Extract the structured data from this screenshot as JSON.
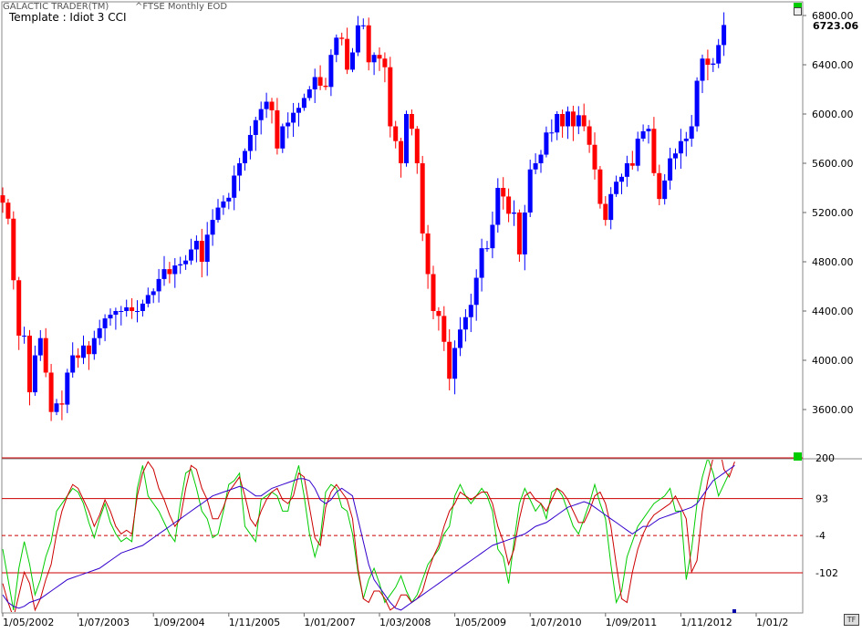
{
  "header": {
    "app_title": "GALACTIC TRADER(TM)",
    "subtitle": "^FTSE Monthly EOD",
    "template": "Template : Idiot 3 CCI",
    "last_price": "6723.06"
  },
  "buttons": {
    "timeframe": "TF"
  },
  "colors": {
    "up": "#0000ff",
    "down": "#ff0000",
    "cci_fast": "#00cc00",
    "cci_mid": "#cc0000",
    "cci_slow": "#3300cc",
    "marker": "#00cc00",
    "reference": "#cc0000"
  },
  "chart_data": [
    {
      "type": "candlestick",
      "title": "^FTSE Monthly EOD",
      "y_tick_labels": [
        "6800.00",
        "6400.00",
        "6000.00",
        "5600.00",
        "5200.00",
        "4800.00",
        "4400.00",
        "4000.00",
        "3600.00"
      ],
      "ylim": [
        3170,
        6900
      ],
      "x_tick_labels": [
        "1/05/2002",
        "1/07/2003",
        "1/09/2004",
        "1/11/2005",
        "1/01/2007",
        "1/03/2008",
        "1/05/2009",
        "1/07/2010",
        "1/09/2011",
        "1/11/2012",
        "1/01/2"
      ],
      "x_tick_index": [
        0,
        14,
        28,
        42,
        56,
        70,
        84,
        98,
        112,
        126,
        140
      ],
      "grid": false,
      "closes": [
        5280,
        5150,
        4650,
        4200,
        4200,
        3740,
        4040,
        4180,
        3900,
        3580,
        3650,
        3640,
        3900,
        4040,
        4020,
        4120,
        4050,
        4180,
        4260,
        4340,
        4370,
        4400,
        4400,
        4430,
        4400,
        4400,
        4460,
        4530,
        4560,
        4660,
        4740,
        4700,
        4770,
        4780,
        4810,
        4900,
        4970,
        4800,
        5020,
        5140,
        5240,
        5290,
        5320,
        5500,
        5600,
        5700,
        5830,
        5950,
        6040,
        6100,
        6030,
        5720,
        5900,
        5930,
        6010,
        6050,
        6130,
        6200,
        6300,
        6230,
        6220,
        6480,
        6620,
        6610,
        6360,
        6500,
        6720,
        6720,
        6420,
        6480,
        6450,
        6380,
        5900,
        5780,
        5600,
        6000,
        5880,
        5600,
        5030,
        4700,
        4400,
        4360,
        4150,
        3850,
        4100,
        4250,
        4350,
        4450,
        4670,
        4910,
        4910,
        5100,
        5400,
        5330,
        5190,
        5200,
        4860,
        5200,
        5550,
        5600,
        5670,
        5850,
        5850,
        6000,
        5900,
        6020,
        5900,
        5990,
        5900,
        5750,
        5550,
        5270,
        5140,
        5350,
        5450,
        5490,
        5600,
        5580,
        5800,
        5860,
        5880,
        5520,
        5310,
        5460,
        5640,
        5680,
        5780,
        5800,
        5900,
        6270,
        6450,
        6400,
        6410,
        6560,
        6723
      ]
    },
    {
      "type": "line",
      "title": "Idiot 3 CCI",
      "y_tick_labels": [
        "200",
        "93",
        "-4",
        "-102"
      ],
      "reference_lines": {
        "solid": [
          200,
          93,
          -102
        ],
        "dashed": [
          -4
        ]
      },
      "ylim": [
        -185,
        260
      ],
      "series": [
        {
          "color": "#00cc00",
          "values": [
            -40,
            -120,
            -200,
            -90,
            -20,
            -80,
            -160,
            -120,
            -60,
            -20,
            60,
            80,
            100,
            120,
            110,
            80,
            30,
            -10,
            40,
            80,
            30,
            0,
            -20,
            -10,
            -20,
            120,
            180,
            100,
            80,
            60,
            30,
            0,
            -20,
            80,
            160,
            170,
            120,
            60,
            40,
            -10,
            0,
            60,
            130,
            140,
            160,
            20,
            0,
            -20,
            90,
            100,
            110,
            100,
            60,
            60,
            130,
            180,
            100,
            0,
            -60,
            -10,
            110,
            130,
            120,
            70,
            60,
            0,
            -100,
            -170,
            -120,
            -90,
            -130,
            -180,
            -160,
            -140,
            -110,
            -150,
            -180,
            -160,
            -120,
            -80,
            -60,
            -40,
            0,
            20,
            100,
            130,
            100,
            80,
            100,
            120,
            100,
            60,
            -40,
            -60,
            -130,
            -20,
            80,
            120,
            90,
            60,
            80,
            40,
            110,
            120,
            100,
            60,
            20,
            0,
            40,
            80,
            130,
            80,
            40,
            -80,
            -180,
            -150,
            -60,
            -20,
            20,
            40,
            60,
            80,
            90,
            100,
            120,
            60,
            60,
            -120,
            -40,
            80,
            150,
            200,
            160,
            100,
            130,
            160
          ]
        },
        {
          "color": "#cc0000",
          "values": [
            -130,
            -180,
            -220,
            -160,
            -100,
            -130,
            -200,
            -170,
            -120,
            -80,
            0,
            60,
            100,
            130,
            120,
            90,
            60,
            20,
            50,
            90,
            60,
            20,
            0,
            10,
            0,
            100,
            160,
            190,
            170,
            120,
            90,
            50,
            20,
            40,
            120,
            180,
            170,
            120,
            90,
            40,
            40,
            70,
            110,
            130,
            150,
            100,
            40,
            20,
            60,
            90,
            110,
            120,
            90,
            80,
            100,
            160,
            150,
            70,
            -10,
            -30,
            70,
            110,
            130,
            110,
            90,
            40,
            -90,
            -170,
            -180,
            -150,
            -150,
            -170,
            -200,
            -190,
            -160,
            -160,
            -180,
            -170,
            -150,
            -100,
            -60,
            -30,
            20,
            60,
            80,
            110,
            100,
            90,
            100,
            110,
            110,
            80,
            20,
            -20,
            -80,
            -40,
            40,
            100,
            110,
            90,
            80,
            60,
            90,
            120,
            110,
            90,
            60,
            30,
            30,
            60,
            100,
            110,
            80,
            20,
            -80,
            -170,
            -180,
            -100,
            -40,
            0,
            30,
            50,
            60,
            70,
            80,
            100,
            70,
            40,
            -100,
            -70,
            60,
            140,
            200,
            240,
            170,
            150,
            190
          ]
        },
        {
          "color": "#3300cc",
          "values": [
            -160,
            -180,
            -190,
            -195,
            -190,
            -180,
            -175,
            -170,
            -160,
            -150,
            -140,
            -130,
            -120,
            -115,
            -110,
            -105,
            -100,
            -95,
            -90,
            -80,
            -70,
            -60,
            -50,
            -45,
            -40,
            -35,
            -30,
            -20,
            -10,
            0,
            10,
            20,
            30,
            40,
            50,
            60,
            70,
            80,
            90,
            100,
            105,
            110,
            115,
            120,
            125,
            120,
            110,
            100,
            100,
            110,
            120,
            125,
            130,
            135,
            140,
            145,
            145,
            140,
            120,
            90,
            80,
            90,
            110,
            120,
            110,
            100,
            40,
            -20,
            -80,
            -120,
            -140,
            -160,
            -180,
            -195,
            -200,
            -190,
            -180,
            -170,
            -160,
            -150,
            -140,
            -130,
            -120,
            -110,
            -100,
            -90,
            -80,
            -70,
            -60,
            -50,
            -40,
            -30,
            -25,
            -20,
            -15,
            -10,
            -5,
            0,
            10,
            20,
            25,
            30,
            40,
            50,
            60,
            70,
            75,
            80,
            85,
            80,
            70,
            60,
            50,
            40,
            30,
            20,
            10,
            0,
            10,
            20,
            20,
            30,
            40,
            45,
            50,
            55,
            60,
            65,
            70,
            80,
            100,
            120,
            140,
            150,
            160,
            170,
            180
          ]
        }
      ]
    }
  ]
}
